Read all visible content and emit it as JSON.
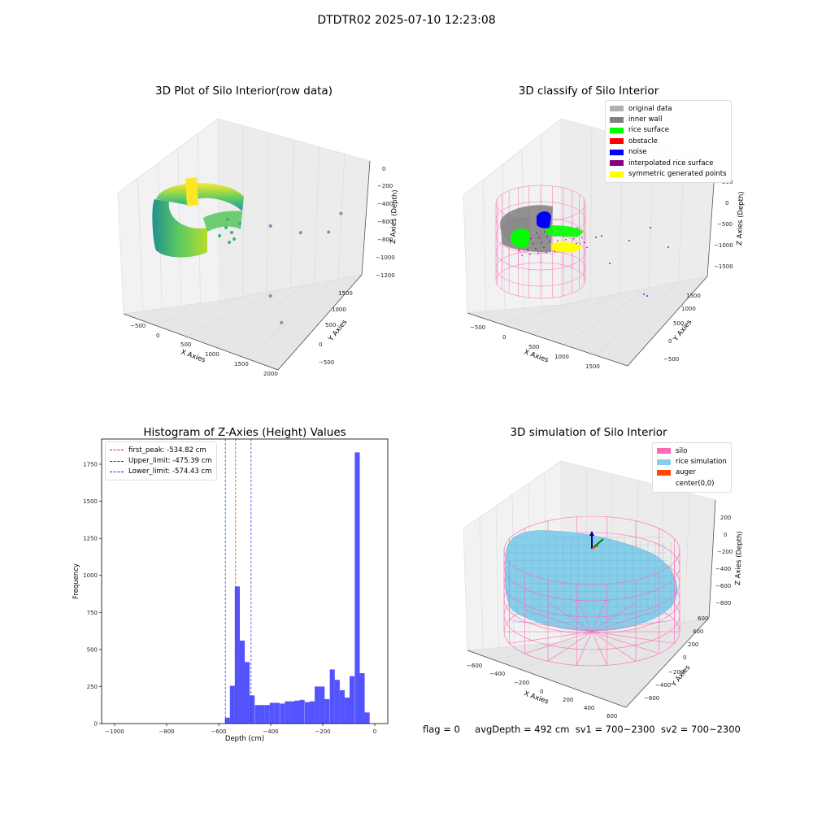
{
  "figure_title": "DTDTR02 2025-07-10 12:23:08",
  "footer": {
    "flag": "flag = 0",
    "avg_depth": "avgDepth = 492 cm",
    "sv1": "sv1 = 700~2300",
    "sv2": "sv2 = 700~2300"
  },
  "colors": {
    "hist_bar": "#4b4bff",
    "peak_line": "#e31a1c",
    "limit_line": "#1f1fd6",
    "silo": "#ff69b4",
    "rice": "#87ceeb",
    "auger": "#ff4500"
  },
  "chart_data": [
    {
      "type": "scatter",
      "title": "3D Plot of Silo Interior(row data)",
      "xlabel": "X Axies",
      "ylabel": "Y Axies",
      "zlabel": "Z Axies (Depth)",
      "x_ticks": [
        "−500",
        "0",
        "500",
        "1000",
        "1500",
        "2000"
      ],
      "y_ticks": [
        "−500",
        "0",
        "500",
        "1000",
        "1500"
      ],
      "z_ticks": [
        "0",
        "−200",
        "−400",
        "−600",
        "−800",
        "−1000",
        "−1200"
      ],
      "xlim": [
        -600,
        2000
      ],
      "ylim": [
        -600,
        1600
      ],
      "zlim": [
        -1250,
        50
      ],
      "colormap": "viridis",
      "outlier_points": [
        {
          "x": 1700,
          "y": 1300,
          "z": -550
        },
        {
          "x": 1600,
          "y": 1150,
          "z": -700
        },
        {
          "x": 1200,
          "y": 1050,
          "z": -750
        },
        {
          "x": 800,
          "y": 900,
          "z": -700
        },
        {
          "x": 1300,
          "y": 200,
          "z": -1000
        },
        {
          "x": 1700,
          "y": -100,
          "z": -1050
        }
      ]
    },
    {
      "type": "scatter",
      "title": "3D classify of Silo Interior",
      "xlabel": "X Axies",
      "ylabel": "Y Axies",
      "zlabel": "Z Axies (Depth)",
      "x_ticks": [
        "−500",
        "0",
        "500",
        "1000",
        "1500"
      ],
      "y_ticks": [
        "−500",
        "0",
        "500",
        "1000",
        "1500"
      ],
      "z_ticks": [
        "500",
        "0",
        "−500",
        "−1000",
        "−1500"
      ],
      "xlim": [
        -600,
        1800
      ],
      "ylim": [
        -600,
        1600
      ],
      "zlim": [
        -1700,
        600
      ],
      "legend": [
        {
          "label": "original data",
          "color": "#b0b0b0"
        },
        {
          "label": "inner wall",
          "color": "#808080"
        },
        {
          "label": "rice surface",
          "color": "#00ff00"
        },
        {
          "label": "obstacle",
          "color": "#ff0000"
        },
        {
          "label": "noise",
          "color": "#0000ff"
        },
        {
          "label": "interpolated rice surface",
          "color": "#800080"
        },
        {
          "label": "symmetric generated points",
          "color": "#ffff00"
        }
      ],
      "legend_position": "upper right"
    },
    {
      "type": "histogram",
      "title": "Histogram of Z-Axies (Height) Values",
      "xlabel": "Depth (cm)",
      "ylabel": "Frequency",
      "xlim": [
        -1050,
        50
      ],
      "ylim": [
        0,
        1920
      ],
      "x_ticks": [
        -1000,
        -800,
        -600,
        -400,
        -200,
        0
      ],
      "x_tick_labels": [
        "−1000",
        "−800",
        "−600",
        "−400",
        "−200",
        "0"
      ],
      "y_ticks": [
        0,
        250,
        500,
        750,
        1000,
        1250,
        1500,
        1750
      ],
      "y_tick_labels": [
        "0",
        "250",
        "500",
        "750",
        "1000",
        "1250",
        "1500",
        "1750"
      ],
      "bin_width": 19.2,
      "bins": [
        {
          "x0": -576,
          "count": 40
        },
        {
          "x0": -557,
          "count": 255
        },
        {
          "x0": -538,
          "count": 925
        },
        {
          "x0": -519,
          "count": 560
        },
        {
          "x0": -500,
          "count": 415
        },
        {
          "x0": -481,
          "count": 190
        },
        {
          "x0": -461,
          "count": 125
        },
        {
          "x0": -442,
          "count": 125
        },
        {
          "x0": -423,
          "count": 125
        },
        {
          "x0": -404,
          "count": 140
        },
        {
          "x0": -385,
          "count": 140
        },
        {
          "x0": -365,
          "count": 135
        },
        {
          "x0": -346,
          "count": 150
        },
        {
          "x0": -327,
          "count": 150
        },
        {
          "x0": -308,
          "count": 155
        },
        {
          "x0": -289,
          "count": 160
        },
        {
          "x0": -269,
          "count": 145
        },
        {
          "x0": -250,
          "count": 150
        },
        {
          "x0": -231,
          "count": 250
        },
        {
          "x0": -212,
          "count": 250
        },
        {
          "x0": -193,
          "count": 165
        },
        {
          "x0": -173,
          "count": 365
        },
        {
          "x0": -154,
          "count": 295
        },
        {
          "x0": -135,
          "count": 225
        },
        {
          "x0": -116,
          "count": 175
        },
        {
          "x0": -97,
          "count": 320
        },
        {
          "x0": -77,
          "count": 1830
        },
        {
          "x0": -58,
          "count": 340
        },
        {
          "x0": -39,
          "count": 75
        }
      ],
      "lines": [
        {
          "label": "first_peak: -534.82 cm",
          "x": -534.82,
          "color": "#e31a1c"
        },
        {
          "label": "Upper_limit: -475.39 cm",
          "x": -475.39,
          "color": "#1f1fd6"
        },
        {
          "label": "Lower_limit: -574.43 cm",
          "x": -574.43,
          "color": "#1f1fd6"
        }
      ],
      "legend_position": "upper left"
    },
    {
      "type": "surface",
      "title": "3D simulation of Silo Interior",
      "xlabel": "X Axies",
      "ylabel": "Y Axies",
      "zlabel": "Z Axies (Depth)",
      "x_ticks": [
        "−600",
        "−400",
        "−200",
        "0",
        "200",
        "400",
        "600"
      ],
      "y_ticks": [
        "−600",
        "−400",
        "−200",
        "0",
        "200",
        "400",
        "600"
      ],
      "z_ticks": [
        "200",
        "0",
        "−200",
        "−400",
        "−600",
        "−800"
      ],
      "xlim": [
        -650,
        650
      ],
      "ylim": [
        -650,
        650
      ],
      "zlim": [
        -900,
        300
      ],
      "legend": [
        {
          "label": "silo",
          "color": "#ff69b4"
        },
        {
          "label": "rice simulation",
          "color": "#87ceeb"
        },
        {
          "label": "auger",
          "color": "#ff4500"
        },
        {
          "label": "center(0,0)",
          "color": ""
        }
      ],
      "legend_position": "upper right"
    }
  ]
}
